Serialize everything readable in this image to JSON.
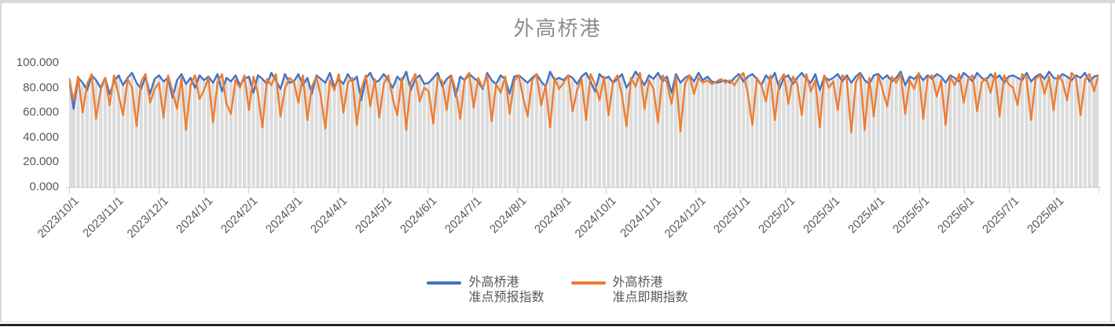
{
  "page": {
    "title": "外高桥港"
  },
  "colors": {
    "forecast_line": "#4472C4",
    "spot_line": "#ED7D31",
    "droplines": "#dcdcdc",
    "axis": "#cfcdcd",
    "labels": "#595959",
    "title": "#8c8c8c"
  },
  "legend": {
    "items": [
      {
        "line1": "外高桥港",
        "line2": "准点预报指数",
        "color": "#4472C4"
      },
      {
        "line1": "外高桥港",
        "line2": "准点即期指数",
        "color": "#ED7D31"
      }
    ]
  },
  "chart_data": {
    "type": "line",
    "title": "外高桥港",
    "xlabel": "",
    "ylabel": "",
    "ylim": [
      0,
      100
    ],
    "grid": false,
    "legend_position": "bottom",
    "x_range": [
      "2023/10/1",
      "2025/8/31"
    ],
    "x_tick_labels": [
      "2023/10/1",
      "2023/11/1",
      "2023/12/1",
      "2024/1/1",
      "2024/2/1",
      "2024/3/1",
      "2024/4/1",
      "2024/5/1",
      "2024/6/1",
      "2024/7/1",
      "2024/8/1",
      "2024/9/1",
      "2024/10/1",
      "2024/11/1",
      "2024/12/1",
      "2025/1/1",
      "2025/2/1",
      "2025/3/1",
      "2025/4/1",
      "2025/5/1",
      "2025/6/1",
      "2025/7/1",
      "2025/8/1"
    ],
    "y_tick_labels": [
      "100.000",
      "80.000",
      "60.000",
      "40.000",
      "20.000",
      "0.000"
    ],
    "y_tick_values": [
      100,
      80,
      60,
      40,
      20,
      0
    ],
    "droplines": true,
    "series": [
      {
        "name": "外高桥港准点预报指数",
        "color": "#4472C4",
        "values": [
          87,
          63,
          88,
          84,
          78,
          90,
          86,
          80,
          88,
          75,
          85,
          90,
          82,
          88,
          92,
          84,
          79,
          89,
          75,
          87,
          90,
          85,
          88,
          72,
          86,
          91,
          83,
          88,
          80,
          90,
          86,
          89,
          84,
          91,
          77,
          88,
          85,
          90,
          82,
          87,
          89,
          76,
          90,
          87,
          83,
          92,
          86,
          79,
          91,
          84,
          85,
          91,
          82,
          88,
          75,
          90,
          87,
          84,
          92,
          81,
          87,
          83,
          91,
          85,
          89,
          70,
          88,
          92,
          84,
          86,
          91,
          86,
          80,
          89,
          85,
          93,
          78,
          87,
          90,
          83,
          84,
          88,
          92,
          81,
          87,
          90,
          73,
          89,
          86,
          91,
          88,
          85,
          79,
          92,
          86,
          83,
          90,
          87,
          75,
          89,
          90,
          87,
          84,
          88,
          91,
          85,
          81,
          93,
          86,
          88,
          86,
          90,
          88,
          83,
          89,
          92,
          85,
          77,
          91,
          87,
          89,
          84,
          87,
          91,
          80,
          86,
          93,
          88,
          82,
          90,
          87,
          92,
          85,
          89,
          76,
          91,
          84,
          88,
          90,
          85,
          92,
          86,
          89,
          85,
          84,
          85,
          86,
          84,
          88,
          91,
          85,
          89,
          91,
          87,
          82,
          90,
          86,
          92,
          79,
          88,
          90,
          83,
          88,
          92,
          87,
          84,
          91,
          78,
          89,
          86,
          88,
          91,
          85,
          90,
          84,
          89,
          92,
          86,
          83,
          90,
          91,
          87,
          90,
          85,
          88,
          93,
          82,
          89,
          87,
          91,
          86,
          90,
          87,
          91,
          89,
          84,
          90,
          88,
          85,
          92,
          89,
          85,
          92,
          88,
          86,
          91,
          87,
          90,
          84,
          89,
          90,
          88,
          86,
          92,
          85,
          89,
          91,
          87,
          93,
          88,
          87,
          91,
          89,
          86,
          90,
          88,
          92,
          85,
          89,
          90
        ]
      },
      {
        "name": "外高桥港准点即期指数",
        "color": "#ED7D31",
        "values": [
          86,
          70,
          89,
          60,
          83,
          91,
          55,
          78,
          88,
          66,
          90,
          74,
          58,
          87,
          80,
          49,
          85,
          91,
          68,
          79,
          84,
          56,
          90,
          77,
          63,
          88,
          46,
          82,
          90,
          71,
          78,
          88,
          52,
          84,
          91,
          67,
          59,
          86,
          80,
          90,
          62,
          89,
          75,
          48,
          87,
          82,
          91,
          57,
          79,
          88,
          85,
          68,
          90,
          54,
          81,
          89,
          73,
          47,
          86,
          78,
          91,
          60,
          84,
          88,
          50,
          79,
          90,
          65,
          87,
          56,
          83,
          90,
          71,
          58,
          88,
          46,
          84,
          91,
          69,
          80,
          77,
          51,
          89,
          85,
          62,
          90,
          78,
          55,
          87,
          92,
          64,
          88,
          80,
          90,
          53,
          83,
          76,
          89,
          59,
          85,
          90,
          72,
          57,
          86,
          91,
          66,
          82,
          48,
          88,
          79,
          84,
          90,
          61,
          78,
          87,
          54,
          91,
          83,
          70,
          89,
          58,
          85,
          90,
          74,
          49,
          88,
          81,
          92,
          63,
          86,
          79,
          52,
          90,
          84,
          67,
          89,
          45,
          83,
          90,
          75,
          88,
          84,
          86,
          83,
          85,
          87,
          84,
          86,
          82,
          88,
          92,
          75,
          50,
          88,
          82,
          69,
          90,
          54,
          85,
          91,
          67,
          89,
          83,
          58,
          91,
          77,
          86,
          48,
          90,
          80,
          85,
          62,
          90,
          87,
          44,
          84,
          91,
          46,
          88,
          57,
          90,
          78,
          65,
          89,
          84,
          91,
          59,
          86,
          79,
          92,
          55,
          88,
          90,
          73,
          86,
          50,
          89,
          82,
          91,
          68,
          87,
          90,
          61,
          84,
          88,
          76,
          92,
          57,
          90,
          83,
          80,
          66,
          91,
          88,
          54,
          87,
          90,
          75,
          89,
          62,
          90,
          85,
          70,
          92,
          88,
          58,
          86,
          91,
          77,
          90
        ]
      }
    ]
  }
}
